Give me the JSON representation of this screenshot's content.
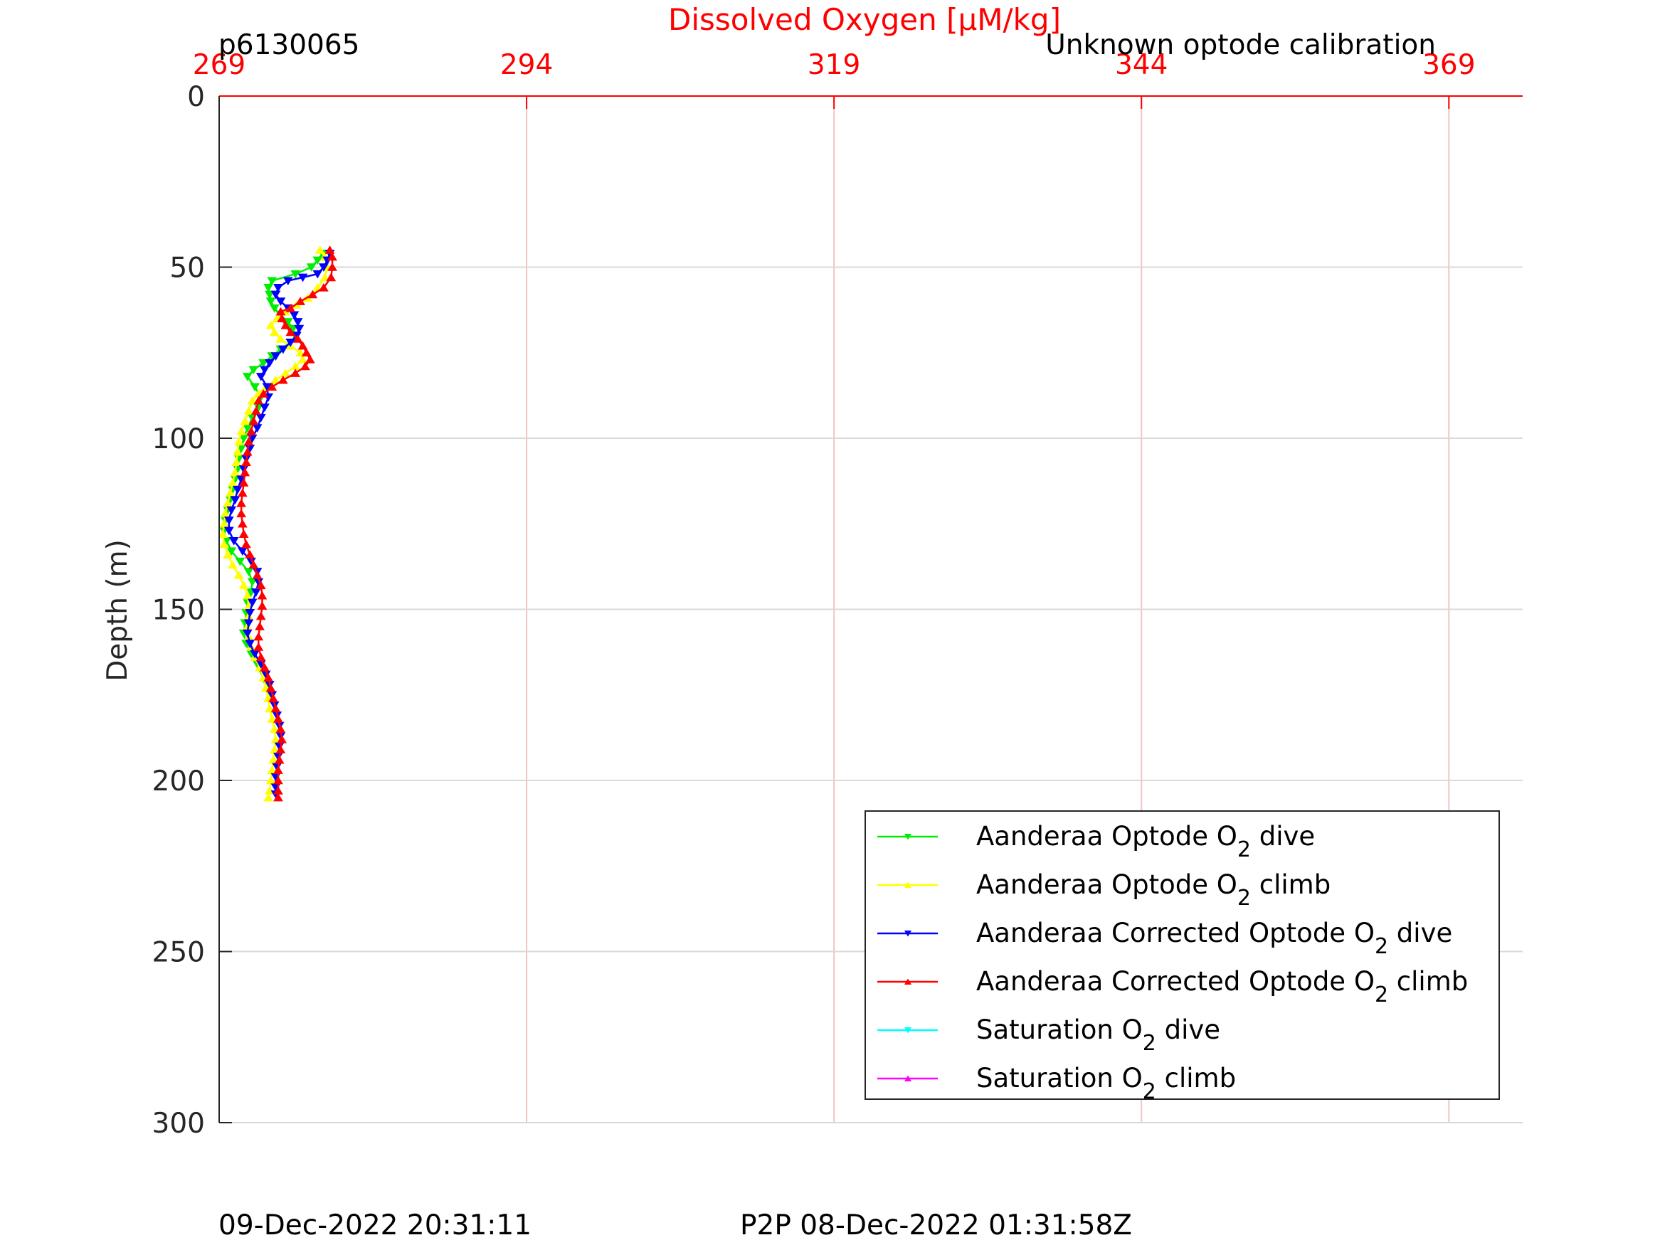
{
  "chart_data": {
    "type": "line",
    "title": "Dissolved Oxygen [μM/kg]",
    "top_left_label": "p6130065",
    "top_right_label": "Unknown optode calibration",
    "ylabel": "Depth (m)",
    "xlim": [
      269,
      375
    ],
    "ylim": [
      0,
      300
    ],
    "y_reversed": true,
    "x_ticks": [
      "269",
      "294",
      "319",
      "344",
      "369"
    ],
    "y_ticks": [
      "0",
      "50",
      "100",
      "150",
      "200",
      "250",
      "300"
    ],
    "grid": true,
    "legend_position": "bottom-right",
    "footer_left": "09-Dec-2022 20:31:11",
    "footer_right": "P2P 08-Dec-2022 01:31:58Z",
    "colors": {
      "axis_x": "#ff0000",
      "grid_x": "#f2c4c4",
      "grid_y": "#d9d9d9"
    },
    "series": [
      {
        "legend_text": "Aanderaa Optode O",
        "legend_sub": "2",
        "legend_tail": " dive",
        "color": "#00ee00",
        "marker": "down",
        "points": [
          [
            277.4,
            46
          ],
          [
            277.0,
            48
          ],
          [
            276.5,
            50
          ],
          [
            275.2,
            52
          ],
          [
            273.3,
            54
          ],
          [
            273.0,
            56
          ],
          [
            273.1,
            58
          ],
          [
            273.2,
            60
          ],
          [
            273.5,
            62
          ],
          [
            274.0,
            64
          ],
          [
            274.6,
            66
          ],
          [
            275.0,
            68
          ],
          [
            275.2,
            70
          ],
          [
            274.8,
            72
          ],
          [
            274.0,
            74
          ],
          [
            273.3,
            76
          ],
          [
            272.6,
            78
          ],
          [
            271.8,
            80
          ],
          [
            271.3,
            82
          ],
          [
            271.9,
            85
          ],
          [
            272.4,
            88
          ],
          [
            272.2,
            91
          ],
          [
            271.7,
            94
          ],
          [
            271.3,
            97
          ],
          [
            271.0,
            100
          ],
          [
            270.8,
            103
          ],
          [
            270.6,
            106
          ],
          [
            270.5,
            109
          ],
          [
            270.3,
            112
          ],
          [
            270.1,
            115
          ],
          [
            269.9,
            118
          ],
          [
            269.7,
            121
          ],
          [
            269.5,
            124
          ],
          [
            269.4,
            127
          ],
          [
            269.6,
            130
          ],
          [
            270.0,
            133
          ],
          [
            270.7,
            136
          ],
          [
            271.4,
            139
          ],
          [
            271.7,
            142
          ],
          [
            271.6,
            145
          ],
          [
            271.3,
            148
          ],
          [
            271.2,
            151
          ],
          [
            271.1,
            154
          ],
          [
            271.0,
            157
          ],
          [
            271.2,
            160
          ],
          [
            271.6,
            163
          ],
          [
            272.1,
            166
          ],
          [
            272.6,
            169
          ],
          [
            272.9,
            172
          ],
          [
            273.2,
            175
          ]
        ]
      },
      {
        "legend_text": "Aanderaa Optode O",
        "legend_sub": "2",
        "legend_tail": " climb",
        "color": "#ffff00",
        "marker": "up",
        "points": [
          [
            277.2,
            45
          ],
          [
            277.6,
            47
          ],
          [
            277.8,
            50
          ],
          [
            277.6,
            53
          ],
          [
            277.0,
            56
          ],
          [
            276.2,
            59
          ],
          [
            275.3,
            61
          ],
          [
            274.4,
            63
          ],
          [
            273.7,
            65
          ],
          [
            273.2,
            67
          ],
          [
            273.5,
            69
          ],
          [
            274.0,
            71
          ],
          [
            274.8,
            73
          ],
          [
            275.6,
            75
          ],
          [
            275.8,
            77
          ],
          [
            275.2,
            79
          ],
          [
            274.4,
            81
          ],
          [
            273.6,
            83
          ],
          [
            272.8,
            85
          ],
          [
            272.2,
            87
          ],
          [
            271.7,
            89
          ],
          [
            271.4,
            92
          ],
          [
            271.1,
            95
          ],
          [
            270.8,
            98
          ],
          [
            270.6,
            101
          ],
          [
            270.5,
            104
          ],
          [
            270.4,
            107
          ],
          [
            270.3,
            110
          ],
          [
            270.1,
            113
          ],
          [
            269.9,
            116
          ],
          [
            269.7,
            119
          ],
          [
            269.5,
            122
          ],
          [
            269.4,
            125
          ],
          [
            269.3,
            128
          ],
          [
            269.4,
            131
          ],
          [
            269.7,
            134
          ],
          [
            270.1,
            137
          ],
          [
            270.6,
            140
          ],
          [
            271.0,
            143
          ],
          [
            271.3,
            146
          ],
          [
            271.4,
            149
          ],
          [
            271.4,
            152
          ],
          [
            271.3,
            155
          ],
          [
            271.4,
            158
          ],
          [
            271.6,
            161
          ],
          [
            271.9,
            164
          ],
          [
            272.3,
            167
          ],
          [
            272.6,
            170
          ],
          [
            272.8,
            173
          ],
          [
            273.0,
            176
          ],
          [
            273.1,
            179
          ],
          [
            273.3,
            182
          ],
          [
            273.5,
            185
          ],
          [
            273.6,
            188
          ],
          [
            273.5,
            191
          ],
          [
            273.4,
            194
          ],
          [
            273.3,
            197
          ],
          [
            273.2,
            200
          ],
          [
            273.1,
            203
          ],
          [
            273.0,
            205
          ]
        ]
      },
      {
        "legend_text": "Aanderaa Corrected Optode O",
        "legend_sub": "2",
        "legend_tail": " dive",
        "color": "#0000ff",
        "marker": "down",
        "points": [
          [
            278.0,
            46
          ],
          [
            277.8,
            48
          ],
          [
            277.5,
            50
          ],
          [
            277.0,
            52
          ],
          [
            275.8,
            53
          ],
          [
            274.6,
            54
          ],
          [
            273.8,
            56
          ],
          [
            273.6,
            58
          ],
          [
            274.0,
            60
          ],
          [
            274.6,
            62
          ],
          [
            275.1,
            64
          ],
          [
            275.4,
            66
          ],
          [
            275.5,
            68
          ],
          [
            275.3,
            70
          ],
          [
            274.8,
            72
          ],
          [
            274.2,
            74
          ],
          [
            273.6,
            76
          ],
          [
            273.1,
            78
          ],
          [
            272.7,
            80
          ],
          [
            272.4,
            82
          ],
          [
            272.9,
            85
          ],
          [
            273.0,
            88
          ],
          [
            272.7,
            91
          ],
          [
            272.4,
            94
          ],
          [
            272.1,
            97
          ],
          [
            271.7,
            100
          ],
          [
            271.5,
            103
          ],
          [
            271.2,
            106
          ],
          [
            271.0,
            109
          ],
          [
            270.8,
            112
          ],
          [
            270.5,
            115
          ],
          [
            270.3,
            118
          ],
          [
            270.0,
            121
          ],
          [
            269.8,
            124
          ],
          [
            269.8,
            127
          ],
          [
            270.2,
            130
          ],
          [
            270.9,
            133
          ],
          [
            271.6,
            136
          ],
          [
            272.1,
            139
          ],
          [
            272.2,
            142
          ],
          [
            272.0,
            145
          ],
          [
            271.7,
            148
          ],
          [
            271.5,
            151
          ],
          [
            271.4,
            154
          ],
          [
            271.3,
            157
          ],
          [
            271.5,
            160
          ],
          [
            271.9,
            163
          ],
          [
            272.4,
            166
          ],
          [
            272.8,
            169
          ],
          [
            273.1,
            172
          ],
          [
            273.3,
            175
          ],
          [
            273.5,
            178
          ],
          [
            273.7,
            181
          ],
          [
            273.9,
            184
          ],
          [
            274.0,
            187
          ],
          [
            273.9,
            190
          ],
          [
            273.8,
            193
          ],
          [
            273.7,
            196
          ],
          [
            273.6,
            199
          ],
          [
            273.6,
            202
          ],
          [
            273.6,
            204
          ]
        ]
      },
      {
        "legend_text": "Aanderaa Corrected Optode O",
        "legend_sub": "2",
        "legend_tail": " climb",
        "color": "#ff0000",
        "marker": "up",
        "points": [
          [
            278.0,
            45
          ],
          [
            278.2,
            47
          ],
          [
            278.2,
            50
          ],
          [
            278.1,
            53
          ],
          [
            277.5,
            56
          ],
          [
            276.6,
            58
          ],
          [
            275.6,
            60
          ],
          [
            274.8,
            62
          ],
          [
            274.0,
            63
          ],
          [
            274.1,
            65
          ],
          [
            274.4,
            67
          ],
          [
            274.8,
            69
          ],
          [
            275.4,
            71
          ],
          [
            275.8,
            73
          ],
          [
            276.1,
            75
          ],
          [
            276.4,
            77
          ],
          [
            276.0,
            79
          ],
          [
            275.2,
            81
          ],
          [
            274.2,
            83
          ],
          [
            273.3,
            85
          ],
          [
            272.6,
            87
          ],
          [
            272.2,
            89
          ],
          [
            272.0,
            92
          ],
          [
            271.8,
            95
          ],
          [
            271.6,
            98
          ],
          [
            271.4,
            101
          ],
          [
            271.3,
            104
          ],
          [
            271.2,
            107
          ],
          [
            271.1,
            110
          ],
          [
            271.0,
            113
          ],
          [
            270.9,
            116
          ],
          [
            270.8,
            119
          ],
          [
            270.8,
            122
          ],
          [
            270.9,
            125
          ],
          [
            271.0,
            128
          ],
          [
            271.2,
            131
          ],
          [
            271.5,
            134
          ],
          [
            271.8,
            137
          ],
          [
            272.1,
            140
          ],
          [
            272.4,
            143
          ],
          [
            272.5,
            146
          ],
          [
            272.5,
            149
          ],
          [
            272.4,
            152
          ],
          [
            272.3,
            155
          ],
          [
            272.2,
            158
          ],
          [
            272.2,
            161
          ],
          [
            272.4,
            164
          ],
          [
            272.7,
            167
          ],
          [
            273.0,
            170
          ],
          [
            273.2,
            173
          ],
          [
            273.4,
            176
          ],
          [
            273.6,
            179
          ],
          [
            273.8,
            182
          ],
          [
            274.0,
            185
          ],
          [
            274.1,
            188
          ],
          [
            274.0,
            191
          ],
          [
            273.9,
            194
          ],
          [
            273.8,
            197
          ],
          [
            273.8,
            200
          ],
          [
            273.8,
            203
          ],
          [
            273.8,
            205
          ]
        ]
      },
      {
        "legend_text": "Saturation O",
        "legend_sub": "2",
        "legend_tail": " dive",
        "color": "#00ffff",
        "marker": "down",
        "points": []
      },
      {
        "legend_text": "Saturation O",
        "legend_sub": "2",
        "legend_tail": " climb",
        "color": "#ff00ff",
        "marker": "up",
        "points": []
      }
    ]
  }
}
